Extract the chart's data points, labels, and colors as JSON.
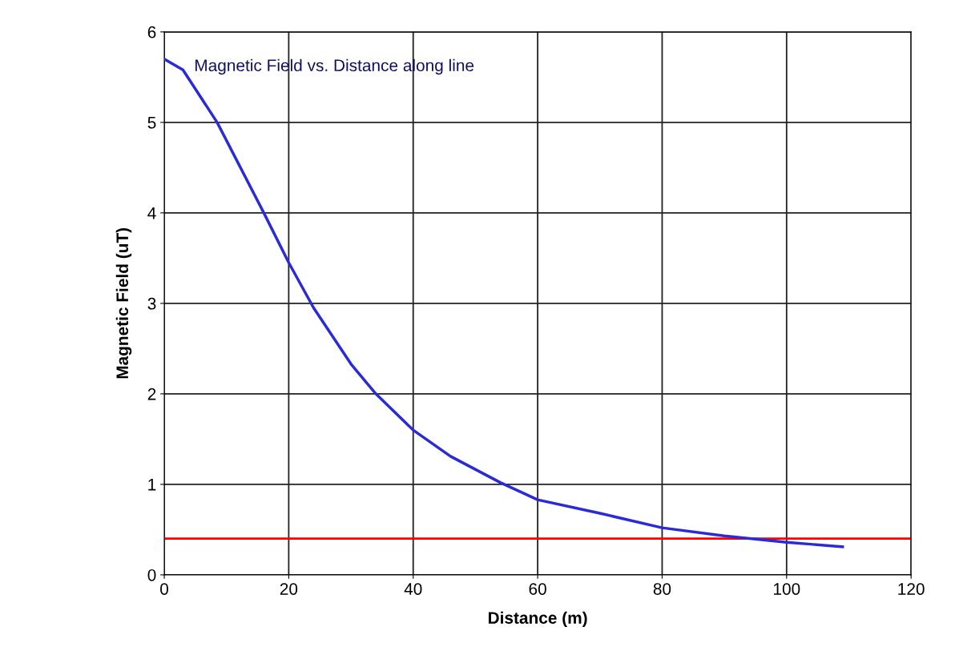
{
  "chart_data": {
    "type": "line",
    "title": "Magnetic Field vs. Distance along line",
    "xlabel": "Distance (m)",
    "ylabel": "Magnetic Field (uT)",
    "x": [
      0,
      3,
      8.5,
      16,
      20,
      24,
      30,
      34,
      40,
      46,
      54,
      60,
      70,
      80,
      90,
      100,
      109
    ],
    "series": [
      {
        "color": "#2a2ad8",
        "values": [
          5.7,
          5.58,
          5.0,
          4.0,
          3.45,
          2.95,
          2.33,
          2.0,
          1.6,
          1.31,
          1.02,
          0.83,
          0.68,
          0.52,
          0.43,
          0.36,
          0.31
        ]
      }
    ],
    "xlim": [
      0,
      120
    ],
    "ylim": [
      0,
      6
    ],
    "xticks": [
      0,
      20,
      40,
      60,
      80,
      100,
      120
    ],
    "yticks": [
      0,
      1,
      2,
      3,
      4,
      5,
      6
    ],
    "ref_lines": [
      {
        "axis": "y",
        "value": 0.4,
        "color": "#ff0000"
      }
    ],
    "grid": true,
    "marker": "none",
    "line_style": "solid"
  }
}
